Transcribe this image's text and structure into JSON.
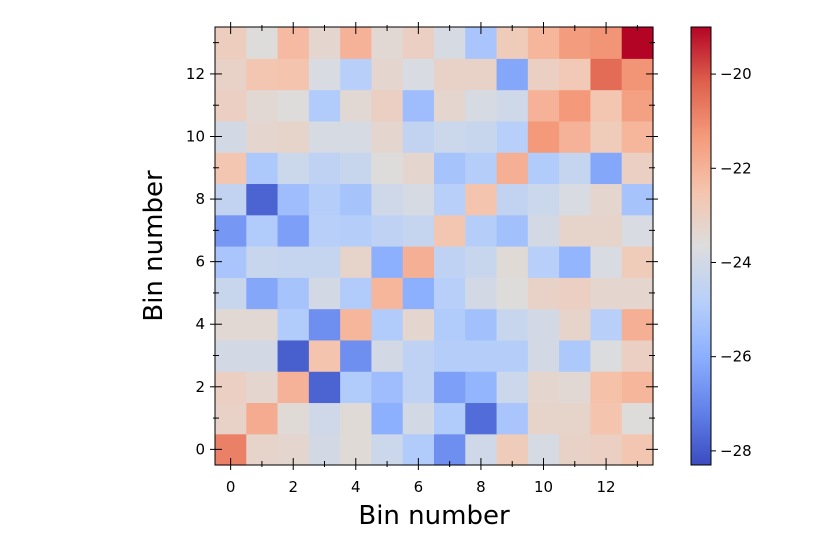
{
  "chart_data": {
    "type": "heatmap",
    "title": "",
    "xlabel": "Bin number",
    "ylabel": "Bin number",
    "x_bins": [
      0,
      1,
      2,
      3,
      4,
      5,
      6,
      7,
      8,
      9,
      10,
      11,
      12,
      13
    ],
    "y_bins": [
      0,
      1,
      2,
      3,
      4,
      5,
      6,
      7,
      8,
      9,
      10,
      11,
      12,
      13
    ],
    "x_ticks": [
      "0",
      "2",
      "4",
      "6",
      "8",
      "10",
      "12"
    ],
    "y_ticks": [
      "0",
      "2",
      "4",
      "6",
      "8",
      "10",
      "12"
    ],
    "colormap": "coolwarm",
    "color_range": [
      -28.3,
      -19.0
    ],
    "colorbar_ticks": [
      "−20",
      "−22",
      "−24",
      "−26",
      "−28"
    ],
    "colorbar_tick_values": [
      -20,
      -22,
      -24,
      -26,
      -28
    ],
    "values": [
      [
        -20.8,
        -23.2,
        -23.3,
        -24.0,
        -23.5,
        -24.2,
        -25.0,
        -26.8,
        -24.1,
        -22.8,
        -23.9,
        -23.1,
        -23.0,
        -22.6
      ],
      [
        -23.1,
        -21.8,
        -23.5,
        -24.1,
        -23.5,
        -26.0,
        -24.0,
        -25.0,
        -27.6,
        -25.2,
        -23.2,
        -23.2,
        -22.5,
        -23.6
      ],
      [
        -23.0,
        -23.3,
        -22.0,
        -27.8,
        -25.0,
        -25.5,
        -24.6,
        -26.4,
        -25.8,
        -24.2,
        -23.3,
        -23.4,
        -22.4,
        -22.1
      ],
      [
        -24.0,
        -24.0,
        -27.9,
        -22.5,
        -26.8,
        -24.0,
        -24.6,
        -24.9,
        -24.9,
        -24.9,
        -24.0,
        -25.1,
        -23.7,
        -23.0
      ],
      [
        -23.4,
        -23.4,
        -25.0,
        -26.8,
        -22.1,
        -25.0,
        -23.3,
        -25.0,
        -25.4,
        -24.3,
        -24.0,
        -23.2,
        -24.8,
        -21.9
      ],
      [
        -24.3,
        -26.2,
        -25.3,
        -24.0,
        -25.0,
        -22.1,
        -26.0,
        -24.8,
        -24.0,
        -23.6,
        -23.1,
        -23.0,
        -23.3,
        -23.3
      ],
      [
        -25.2,
        -24.3,
        -24.4,
        -24.4,
        -23.2,
        -26.0,
        -21.9,
        -24.6,
        -24.3,
        -23.5,
        -24.8,
        -25.8,
        -23.8,
        -22.8
      ],
      [
        -26.6,
        -25.0,
        -26.4,
        -24.8,
        -24.9,
        -24.6,
        -24.4,
        -22.6,
        -24.9,
        -25.4,
        -24.0,
        -23.2,
        -23.2,
        -23.8
      ],
      [
        -24.5,
        -27.8,
        -25.5,
        -24.9,
        -25.3,
        -24.1,
        -23.9,
        -24.8,
        -22.5,
        -24.5,
        -24.2,
        -23.8,
        -23.3,
        -25.3
      ],
      [
        -22.6,
        -25.1,
        -24.2,
        -24.6,
        -24.3,
        -23.6,
        -23.3,
        -25.3,
        -24.9,
        -21.9,
        -25.0,
        -24.4,
        -26.2,
        -23.0
      ],
      [
        -24.0,
        -23.3,
        -23.2,
        -23.9,
        -23.9,
        -23.3,
        -24.5,
        -24.2,
        -24.3,
        -24.8,
        -21.3,
        -22.0,
        -22.8,
        -22.1
      ],
      [
        -23.0,
        -23.4,
        -23.6,
        -25.0,
        -23.4,
        -23.0,
        -25.5,
        -23.3,
        -23.9,
        -24.1,
        -22.0,
        -21.3,
        -22.6,
        -21.5
      ],
      [
        -23.1,
        -22.6,
        -22.5,
        -23.8,
        -24.8,
        -23.3,
        -23.8,
        -23.1,
        -23.1,
        -26.2,
        -23.0,
        -22.7,
        -20.4,
        -21.2
      ],
      [
        -22.9,
        -23.6,
        -22.2,
        -23.3,
        -22.0,
        -23.4,
        -23.0,
        -23.9,
        -25.2,
        -22.8,
        -22.1,
        -21.4,
        -21.2,
        -19.0
      ]
    ]
  }
}
